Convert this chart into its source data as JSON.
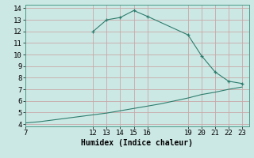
{
  "upper_x": [
    12,
    13,
    14,
    15,
    16,
    19,
    20,
    21,
    22,
    23
  ],
  "upper_y": [
    12.0,
    13.0,
    13.2,
    13.8,
    13.3,
    11.7,
    9.9,
    8.5,
    7.7,
    7.5
  ],
  "lower_x": [
    7,
    8,
    9,
    10,
    11,
    12,
    13,
    14,
    15,
    16,
    17,
    18,
    19,
    20,
    21,
    22,
    23
  ],
  "lower_y": [
    4.1,
    4.2,
    4.35,
    4.5,
    4.65,
    4.8,
    4.95,
    5.15,
    5.35,
    5.55,
    5.75,
    6.0,
    6.25,
    6.55,
    6.75,
    7.0,
    7.2
  ],
  "line_color": "#2e7d6e",
  "bg_color": "#cce8e4",
  "grid_color": "#c8a8a8",
  "xlabel": "Humidex (Indice chaleur)",
  "xlim": [
    7,
    23.5
  ],
  "ylim": [
    3.8,
    14.3
  ],
  "xticks": [
    7,
    12,
    13,
    14,
    15,
    16,
    19,
    20,
    21,
    22,
    23
  ],
  "yticks": [
    4,
    5,
    6,
    7,
    8,
    9,
    10,
    11,
    12,
    13,
    14
  ],
  "label_fontsize": 7,
  "tick_fontsize": 6.5
}
